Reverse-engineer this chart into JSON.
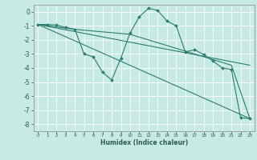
{
  "xlabel": "Humidex (Indice chaleur)",
  "xlim": [
    -0.5,
    23.5
  ],
  "ylim": [
    -8.5,
    0.5
  ],
  "yticks": [
    0,
    -1,
    -2,
    -3,
    -4,
    -5,
    -6,
    -7,
    -8
  ],
  "xticks": [
    0,
    1,
    2,
    3,
    4,
    5,
    6,
    7,
    8,
    9,
    10,
    11,
    12,
    13,
    14,
    15,
    16,
    17,
    18,
    19,
    20,
    21,
    22,
    23
  ],
  "bg_color": "#c8eae4",
  "grid_color": "#ffffff",
  "line_color": "#2a7d6f",
  "line1_x": [
    0,
    1,
    2,
    3,
    4,
    5,
    6,
    7,
    8,
    9,
    10,
    11,
    12,
    13,
    14,
    15,
    16,
    17,
    18,
    19,
    20,
    21,
    22,
    23
  ],
  "line1_y": [
    -0.9,
    -0.9,
    -0.95,
    -1.1,
    -1.25,
    -3.0,
    -3.2,
    -4.3,
    -4.85,
    -3.3,
    -1.5,
    -0.35,
    0.25,
    0.1,
    -0.65,
    -1.0,
    -2.85,
    -2.7,
    -3.05,
    -3.5,
    -4.0,
    -4.1,
    -7.55,
    -7.6
  ],
  "line2_x": [
    0,
    4,
    10,
    21,
    23
  ],
  "line2_y": [
    -0.9,
    -1.25,
    -1.6,
    -3.8,
    -7.6
  ],
  "line3_x": [
    0,
    23
  ],
  "line3_y": [
    -0.9,
    -3.8
  ],
  "line4_x": [
    0,
    23
  ],
  "line4_y": [
    -0.9,
    -7.6
  ],
  "lw": 0.8,
  "marker_size": 2.0
}
